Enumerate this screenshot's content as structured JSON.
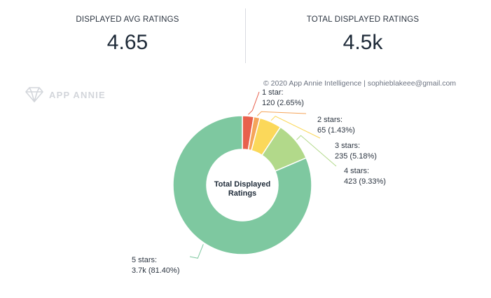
{
  "kpis": {
    "avg": {
      "label": "DISPLAYED AVG RATINGS",
      "value": "4.65"
    },
    "total": {
      "label": "TOTAL DISPLAYED RATINGS",
      "value": "4.5k"
    }
  },
  "watermark": {
    "brand": "APP ANNIE",
    "icon": "diamond-logo-icon"
  },
  "copyright": "© 2020 App Annie Intelligence | sophieblakeee@gmail.com",
  "chart_data": {
    "type": "pie",
    "variant": "donut",
    "center_label": [
      "Total Displayed",
      "Ratings"
    ],
    "slices": [
      {
        "name": "1 star",
        "label": "1 star:",
        "value_label": "120 (2.65%)",
        "value": 120,
        "percent": 2.65,
        "color": "#e8604c"
      },
      {
        "name": "2 stars",
        "label": "2 stars:",
        "value_label": "65 (1.43%)",
        "value": 65,
        "percent": 1.43,
        "color": "#f5a55a"
      },
      {
        "name": "3 stars",
        "label": "3 stars:",
        "value_label": "235 (5.18%)",
        "value": 235,
        "percent": 5.18,
        "color": "#fbd85a"
      },
      {
        "name": "4 stars",
        "label": "4 stars:",
        "value_label": "423 (9.33%)",
        "value": 423,
        "percent": 9.33,
        "color": "#b2d98a"
      },
      {
        "name": "5 stars",
        "label": "5 stars:",
        "value_label": "3.7k (81.40%)",
        "value": 3700,
        "percent": 81.4,
        "color": "#7ec8a0"
      }
    ]
  }
}
